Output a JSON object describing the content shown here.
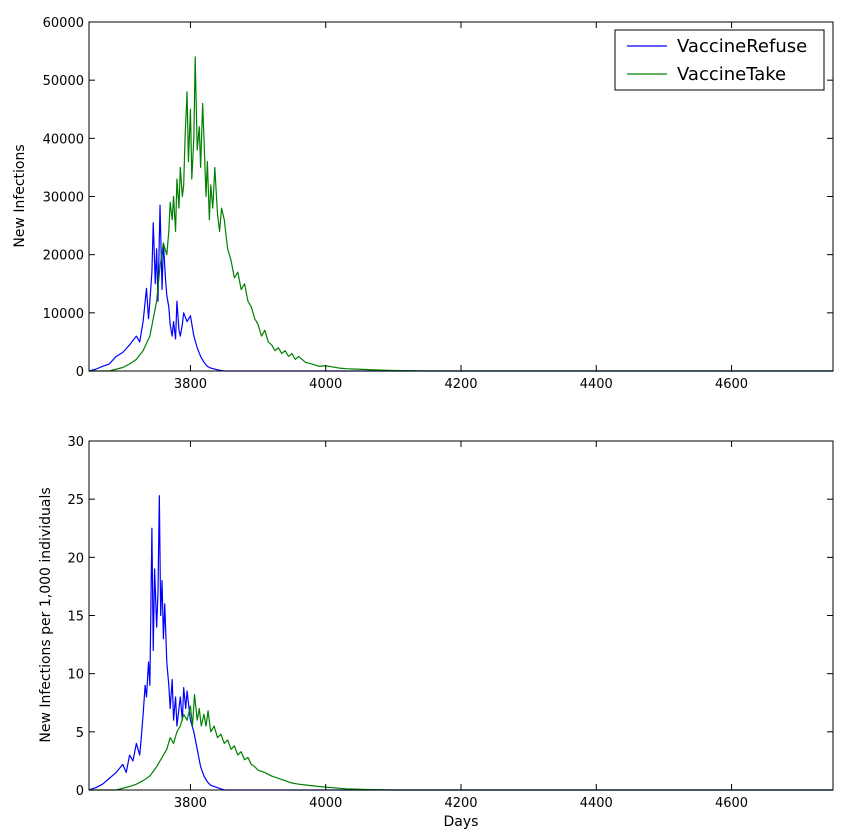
{
  "chart_data": [
    {
      "type": "line",
      "title": "",
      "xlabel": "",
      "ylabel": "New Infections",
      "xlim": [
        3650,
        4750
      ],
      "ylim": [
        0,
        60000
      ],
      "xticks": [
        3800,
        4000,
        4200,
        4400,
        4600
      ],
      "yticks": [
        0,
        10000,
        20000,
        30000,
        40000,
        50000,
        60000
      ],
      "xtick_labels": [
        "3800",
        "4000",
        "4200",
        "4400",
        "4600"
      ],
      "ytick_labels": [
        "0",
        "10000",
        "20000",
        "30000",
        "40000",
        "50000",
        "60000"
      ],
      "grid": false,
      "legend": {
        "position": "top-right",
        "entries": [
          "VaccineRefuse",
          "VaccineTake"
        ]
      },
      "series": [
        {
          "name": "VaccineRefuse",
          "color": "#0000ff",
          "points": [
            [
              3650,
              0
            ],
            [
              3660,
              300
            ],
            [
              3670,
              800
            ],
            [
              3680,
              1200
            ],
            [
              3690,
              2500
            ],
            [
              3700,
              3200
            ],
            [
              3710,
              4500
            ],
            [
              3720,
              6000
            ],
            [
              3725,
              5000
            ],
            [
              3730,
              8500
            ],
            [
              3735,
              14200
            ],
            [
              3738,
              9000
            ],
            [
              3740,
              12000
            ],
            [
              3743,
              17000
            ],
            [
              3745,
              25500
            ],
            [
              3748,
              15000
            ],
            [
              3750,
              21000
            ],
            [
              3752,
              12000
            ],
            [
              3755,
              28500
            ],
            [
              3758,
              14000
            ],
            [
              3760,
              22000
            ],
            [
              3763,
              16000
            ],
            [
              3765,
              13000
            ],
            [
              3768,
              11000
            ],
            [
              3770,
              8000
            ],
            [
              3773,
              6000
            ],
            [
              3775,
              8500
            ],
            [
              3778,
              5500
            ],
            [
              3780,
              12000
            ],
            [
              3783,
              7000
            ],
            [
              3785,
              6000
            ],
            [
              3788,
              8000
            ],
            [
              3790,
              10000
            ],
            [
              3795,
              8500
            ],
            [
              3800,
              9500
            ],
            [
              3805,
              6000
            ],
            [
              3810,
              4000
            ],
            [
              3815,
              2500
            ],
            [
              3820,
              1500
            ],
            [
              3825,
              800
            ],
            [
              3830,
              500
            ],
            [
              3840,
              200
            ],
            [
              3850,
              0
            ],
            [
              3860,
              0
            ],
            [
              4750,
              0
            ]
          ]
        },
        {
          "name": "VaccineTake",
          "color": "#008000",
          "points": [
            [
              3650,
              0
            ],
            [
              3680,
              0
            ],
            [
              3700,
              600
            ],
            [
              3710,
              1200
            ],
            [
              3720,
              2000
            ],
            [
              3730,
              3500
            ],
            [
              3740,
              6000
            ],
            [
              3745,
              9000
            ],
            [
              3750,
              12000
            ],
            [
              3755,
              18000
            ],
            [
              3760,
              22000
            ],
            [
              3765,
              20000
            ],
            [
              3768,
              24000
            ],
            [
              3770,
              29000
            ],
            [
              3773,
              26000
            ],
            [
              3775,
              30000
            ],
            [
              3778,
              24000
            ],
            [
              3780,
              33000
            ],
            [
              3783,
              28000
            ],
            [
              3785,
              35000
            ],
            [
              3788,
              30000
            ],
            [
              3790,
              32000
            ],
            [
              3792,
              40000
            ],
            [
              3795,
              48000
            ],
            [
              3797,
              36000
            ],
            [
              3800,
              45000
            ],
            [
              3802,
              33000
            ],
            [
              3805,
              40000
            ],
            [
              3807,
              54000
            ],
            [
              3810,
              38000
            ],
            [
              3813,
              42000
            ],
            [
              3815,
              35000
            ],
            [
              3818,
              46000
            ],
            [
              3820,
              40000
            ],
            [
              3823,
              30000
            ],
            [
              3825,
              36000
            ],
            [
              3828,
              26000
            ],
            [
              3830,
              32000
            ],
            [
              3833,
              28000
            ],
            [
              3836,
              35000
            ],
            [
              3840,
              27000
            ],
            [
              3843,
              24000
            ],
            [
              3846,
              28000
            ],
            [
              3850,
              26000
            ],
            [
              3855,
              21000
            ],
            [
              3860,
              19000
            ],
            [
              3865,
              16000
            ],
            [
              3870,
              17000
            ],
            [
              3875,
              14000
            ],
            [
              3880,
              15000
            ],
            [
              3885,
              12000
            ],
            [
              3890,
              11000
            ],
            [
              3895,
              9000
            ],
            [
              3900,
              8000
            ],
            [
              3905,
              6000
            ],
            [
              3910,
              7000
            ],
            [
              3915,
              5000
            ],
            [
              3920,
              4500
            ],
            [
              3925,
              3500
            ],
            [
              3930,
              4000
            ],
            [
              3935,
              3000
            ],
            [
              3940,
              3500
            ],
            [
              3945,
              2500
            ],
            [
              3950,
              3000
            ],
            [
              3955,
              2000
            ],
            [
              3960,
              2500
            ],
            [
              3970,
              1500
            ],
            [
              3980,
              1200
            ],
            [
              3990,
              800
            ],
            [
              4000,
              900
            ],
            [
              4010,
              700
            ],
            [
              4020,
              500
            ],
            [
              4030,
              400
            ],
            [
              4050,
              300
            ],
            [
              4070,
              200
            ],
            [
              4100,
              100
            ],
            [
              4130,
              50
            ],
            [
              4150,
              0
            ],
            [
              4750,
              0
            ]
          ]
        }
      ]
    },
    {
      "type": "line",
      "title": "",
      "xlabel": "Days",
      "ylabel": "New Infections per 1,000 individuals",
      "xlim": [
        3650,
        4750
      ],
      "ylim": [
        0,
        30
      ],
      "xticks": [
        3800,
        4000,
        4200,
        4400,
        4600
      ],
      "yticks": [
        0,
        5,
        10,
        15,
        20,
        25,
        30
      ],
      "xtick_labels": [
        "3800",
        "4000",
        "4200",
        "4400",
        "4600"
      ],
      "ytick_labels": [
        "0",
        "5",
        "10",
        "15",
        "20",
        "25",
        "30"
      ],
      "grid": false,
      "series": [
        {
          "color": "#0000ff",
          "points": [
            [
              3650,
              0
            ],
            [
              3660,
              0.2
            ],
            [
              3670,
              0.5
            ],
            [
              3680,
              1.0
            ],
            [
              3690,
              1.5
            ],
            [
              3700,
              2.2
            ],
            [
              3705,
              1.5
            ],
            [
              3710,
              3.0
            ],
            [
              3715,
              2.5
            ],
            [
              3720,
              4.0
            ],
            [
              3725,
              3.0
            ],
            [
              3728,
              5.0
            ],
            [
              3730,
              6.5
            ],
            [
              3733,
              9.0
            ],
            [
              3735,
              8.0
            ],
            [
              3738,
              11.0
            ],
            [
              3740,
              9.0
            ],
            [
              3743,
              22.5
            ],
            [
              3745,
              12.0
            ],
            [
              3747,
              19.0
            ],
            [
              3750,
              14.0
            ],
            [
              3752,
              17.0
            ],
            [
              3754,
              25.3
            ],
            [
              3756,
              15.0
            ],
            [
              3758,
              18.0
            ],
            [
              3760,
              13.0
            ],
            [
              3762,
              16.0
            ],
            [
              3765,
              11.0
            ],
            [
              3768,
              9.0
            ],
            [
              3770,
              7.0
            ],
            [
              3773,
              9.5
            ],
            [
              3775,
              6.0
            ],
            [
              3778,
              8.0
            ],
            [
              3780,
              5.5
            ],
            [
              3783,
              7.0
            ],
            [
              3785,
              8.0
            ],
            [
              3788,
              6.0
            ],
            [
              3790,
              8.8
            ],
            [
              3793,
              7.0
            ],
            [
              3795,
              8.5
            ],
            [
              3800,
              6.0
            ],
            [
              3805,
              5.0
            ],
            [
              3810,
              3.5
            ],
            [
              3815,
              2.0
            ],
            [
              3820,
              1.2
            ],
            [
              3825,
              0.7
            ],
            [
              3830,
              0.4
            ],
            [
              3840,
              0.2
            ],
            [
              3850,
              0
            ],
            [
              3860,
              0
            ],
            [
              4750,
              0
            ]
          ]
        },
        {
          "color": "#008000",
          "points": [
            [
              3650,
              0
            ],
            [
              3690,
              0
            ],
            [
              3710,
              0.3
            ],
            [
              3720,
              0.5
            ],
            [
              3730,
              0.8
            ],
            [
              3740,
              1.2
            ],
            [
              3750,
              2.0
            ],
            [
              3755,
              2.5
            ],
            [
              3760,
              3.0
            ],
            [
              3765,
              3.5
            ],
            [
              3770,
              4.5
            ],
            [
              3775,
              4.0
            ],
            [
              3780,
              5.0
            ],
            [
              3785,
              5.5
            ],
            [
              3790,
              6.5
            ],
            [
              3795,
              6.0
            ],
            [
              3800,
              7.2
            ],
            [
              3803,
              5.5
            ],
            [
              3806,
              8.2
            ],
            [
              3810,
              6.0
            ],
            [
              3813,
              7.0
            ],
            [
              3816,
              5.5
            ],
            [
              3820,
              6.5
            ],
            [
              3823,
              5.5
            ],
            [
              3826,
              6.8
            ],
            [
              3830,
              5.0
            ],
            [
              3835,
              5.5
            ],
            [
              3840,
              4.5
            ],
            [
              3845,
              4.8
            ],
            [
              3850,
              4.0
            ],
            [
              3855,
              4.3
            ],
            [
              3860,
              3.5
            ],
            [
              3865,
              3.8
            ],
            [
              3870,
              3.0
            ],
            [
              3875,
              3.3
            ],
            [
              3880,
              2.6
            ],
            [
              3885,
              2.8
            ],
            [
              3890,
              2.2
            ],
            [
              3895,
              2.0
            ],
            [
              3900,
              1.7
            ],
            [
              3910,
              1.5
            ],
            [
              3920,
              1.2
            ],
            [
              3930,
              1.0
            ],
            [
              3940,
              0.8
            ],
            [
              3950,
              0.6
            ],
            [
              3960,
              0.5
            ],
            [
              3975,
              0.4
            ],
            [
              3990,
              0.3
            ],
            [
              4010,
              0.2
            ],
            [
              4030,
              0.1
            ],
            [
              4060,
              0.05
            ],
            [
              4100,
              0
            ],
            [
              4750,
              0
            ]
          ]
        }
      ]
    }
  ]
}
